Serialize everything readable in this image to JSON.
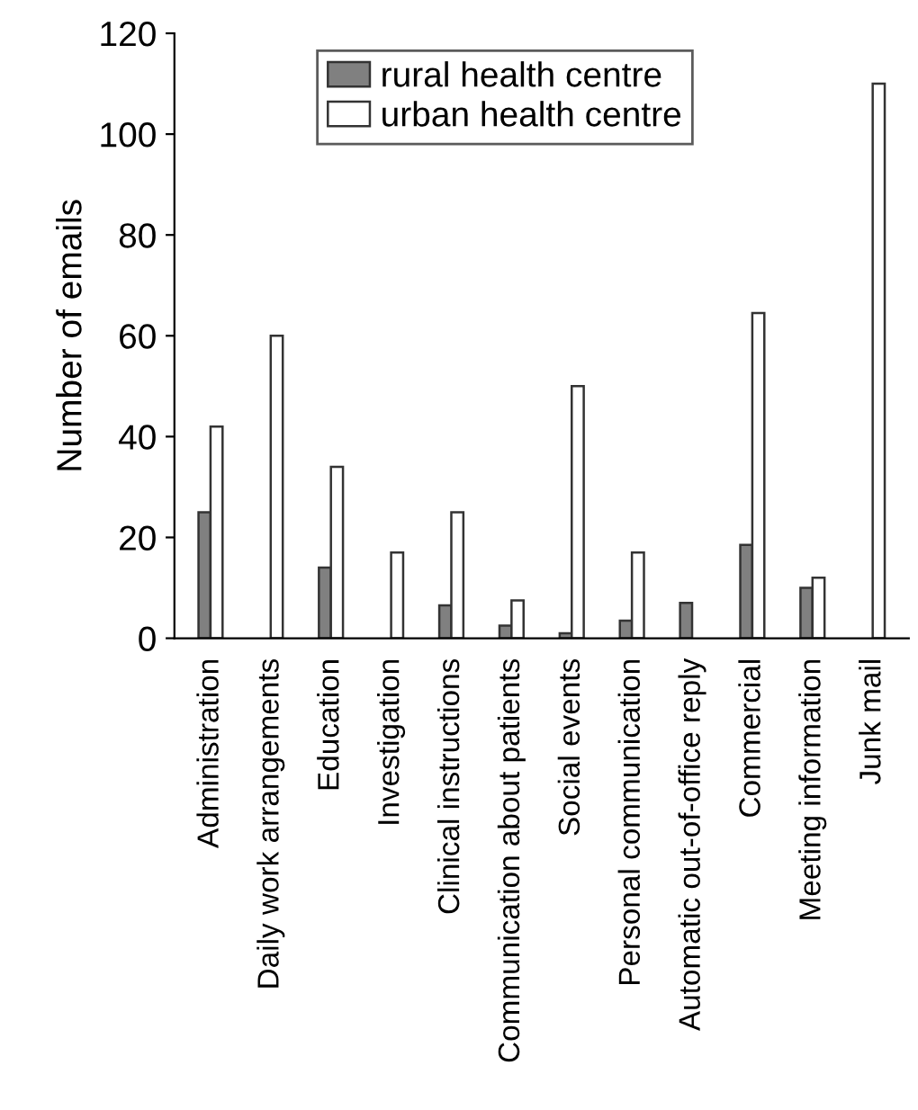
{
  "chart_data": {
    "type": "bar",
    "ylabel": "Number of emails",
    "categories": [
      "Administration",
      "Daily work arrangements",
      "Education",
      "Investigation",
      "Clinical instructions",
      "Communication about patients",
      "Social events",
      "Personal communication",
      "Automatic out-of-office reply",
      "Commercial",
      "Meeting information",
      "Junk mail"
    ],
    "series": [
      {
        "name": "rural health centre",
        "color": "#808080",
        "values": [
          25,
          null,
          14,
          null,
          6.5,
          2.5,
          1,
          3.5,
          7,
          18.5,
          10,
          null
        ]
      },
      {
        "name": "urban health centre",
        "color": "#ffffff",
        "values": [
          42,
          60,
          34,
          17,
          25,
          7.5,
          50,
          17,
          null,
          64.5,
          12,
          110
        ]
      }
    ],
    "ylim": [
      0,
      120
    ],
    "yticks": [
      0,
      20,
      40,
      60,
      80,
      100,
      120
    ],
    "grid": false,
    "legend": "top"
  }
}
